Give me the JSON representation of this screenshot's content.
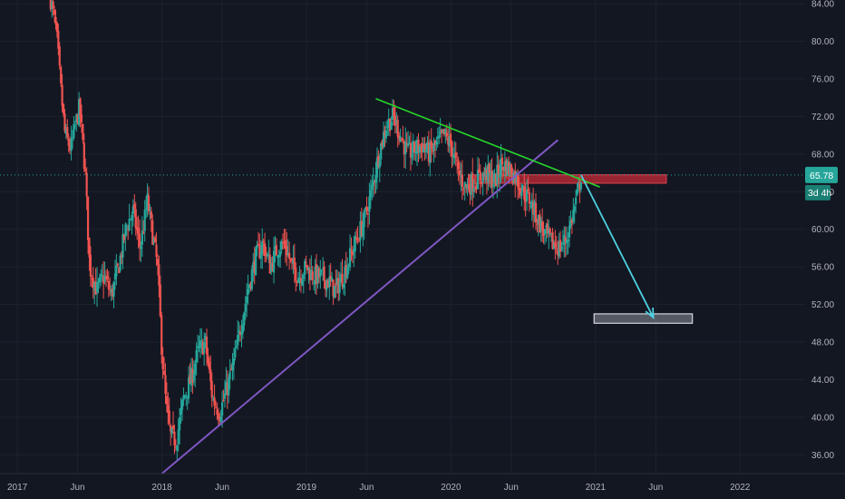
{
  "chart_data": {
    "type": "candlestick",
    "symbol_interval_badge": "3d 4h",
    "last_price": 65.78,
    "last_price_label": "65.78",
    "y_ticks": [
      "36.00",
      "40.00",
      "44.00",
      "48.00",
      "52.00",
      "56.00",
      "60.00",
      "64.00",
      "68.00",
      "72.00",
      "76.00",
      "80.00",
      "84.00"
    ],
    "x_ticks": [
      "2017",
      "Jun",
      "2018",
      "Jun",
      "2019",
      "Jun",
      "2020",
      "Jun",
      "2021",
      "Jun",
      "2022"
    ],
    "ylim": [
      34.0,
      84.4
    ],
    "xlim": [
      2016.88,
      2022.45
    ],
    "colors": {
      "background": "#131722",
      "grid": "#1e222d",
      "up": "#26a69a",
      "down": "#ef5350",
      "text": "#b2b5be",
      "price_badge": "#26a69a",
      "support_line": "#7e57c2",
      "resistance_line": "#27d52a",
      "projection_arrow": "#4dd0e1",
      "resistance_zone": "#b22833",
      "target_zone": "#d1d4dc"
    },
    "price_path": [
      [
        2017.23,
        84.5
      ],
      [
        2017.27,
        81.0
      ],
      [
        2017.3,
        75.0
      ],
      [
        2017.33,
        70.0
      ],
      [
        2017.37,
        68.5
      ],
      [
        2017.4,
        71.0
      ],
      [
        2017.43,
        73.0
      ],
      [
        2017.47,
        66.0
      ],
      [
        2017.5,
        56.0
      ],
      [
        2017.55,
        53.5
      ],
      [
        2017.6,
        55.0
      ],
      [
        2017.65,
        53.0
      ],
      [
        2017.7,
        56.0
      ],
      [
        2017.75,
        60.0
      ],
      [
        2017.8,
        62.0
      ],
      [
        2017.85,
        58.0
      ],
      [
        2017.9,
        63.0
      ],
      [
        2017.93,
        60.0
      ],
      [
        2017.97,
        56.0
      ],
      [
        2018.0,
        47.0
      ],
      [
        2018.03,
        41.0
      ],
      [
        2018.06,
        38.0
      ],
      [
        2018.1,
        37.5
      ],
      [
        2018.15,
        42.0
      ],
      [
        2018.2,
        44.0
      ],
      [
        2018.25,
        47.0
      ],
      [
        2018.3,
        48.0
      ],
      [
        2018.35,
        42.0
      ],
      [
        2018.4,
        40.5
      ],
      [
        2018.45,
        43.0
      ],
      [
        2018.5,
        46.0
      ],
      [
        2018.55,
        50.0
      ],
      [
        2018.6,
        54.0
      ],
      [
        2018.65,
        57.0
      ],
      [
        2018.7,
        58.5
      ],
      [
        2018.75,
        56.0
      ],
      [
        2018.8,
        58.0
      ],
      [
        2018.85,
        58.5
      ],
      [
        2018.9,
        56.0
      ],
      [
        2018.95,
        55.0
      ],
      [
        2019.0,
        56.0
      ],
      [
        2019.05,
        55.0
      ],
      [
        2019.1,
        55.0
      ],
      [
        2019.15,
        54.5
      ],
      [
        2019.2,
        53.5
      ],
      [
        2019.25,
        55.0
      ],
      [
        2019.3,
        57.0
      ],
      [
        2019.35,
        59.0
      ],
      [
        2019.4,
        61.0
      ],
      [
        2019.45,
        64.0
      ],
      [
        2019.5,
        68.0
      ],
      [
        2019.55,
        71.0
      ],
      [
        2019.6,
        72.0
      ],
      [
        2019.65,
        70.0
      ],
      [
        2019.7,
        68.0
      ],
      [
        2019.75,
        68.5
      ],
      [
        2019.8,
        69.0
      ],
      [
        2019.85,
        68.0
      ],
      [
        2019.9,
        69.0
      ],
      [
        2019.95,
        70.0
      ],
      [
        2020.0,
        69.0
      ],
      [
        2020.05,
        66.0
      ],
      [
        2020.1,
        64.5
      ],
      [
        2020.15,
        65.0
      ],
      [
        2020.2,
        65.5
      ],
      [
        2020.25,
        66.0
      ],
      [
        2020.3,
        65.0
      ],
      [
        2020.35,
        67.0
      ],
      [
        2020.4,
        66.5
      ],
      [
        2020.45,
        65.5
      ],
      [
        2020.5,
        64.0
      ],
      [
        2020.55,
        63.0
      ],
      [
        2020.6,
        61.0
      ],
      [
        2020.65,
        59.5
      ],
      [
        2020.7,
        58.5
      ],
      [
        2020.75,
        58.0
      ],
      [
        2020.8,
        59.0
      ],
      [
        2020.85,
        62.0
      ],
      [
        2020.88,
        64.0
      ],
      [
        2020.9,
        65.78
      ]
    ],
    "drawings": {
      "support_trendline": {
        "from": [
          2018.0,
          34.0
        ],
        "to": [
          2020.74,
          69.5
        ]
      },
      "resistance_trendline": {
        "from": [
          2019.48,
          73.9
        ],
        "to": [
          2021.03,
          64.5
        ]
      },
      "resistance_zone": {
        "x": [
          2020.12,
          2021.49
        ],
        "y": [
          64.9,
          65.8
        ]
      },
      "projection_arrow": {
        "from": [
          2020.9,
          65.78
        ],
        "to": [
          2021.4,
          50.6
        ]
      },
      "target_zone": {
        "x": [
          2020.99,
          2021.67
        ],
        "y": [
          50.0,
          51.0
        ]
      }
    }
  }
}
